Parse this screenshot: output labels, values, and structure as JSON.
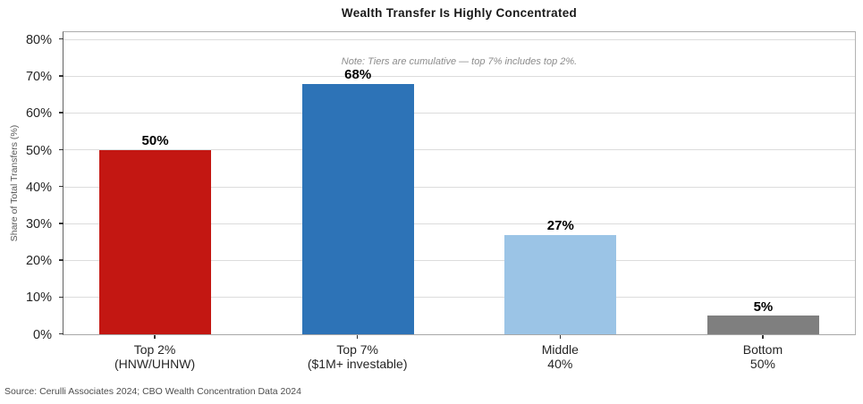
{
  "chart_data": {
    "type": "bar",
    "title": "Wealth Transfer Is Highly Concentrated",
    "ylabel": "Share of Total Transfers (%)",
    "xlabel": "",
    "note": "Note: Tiers are cumulative — top 7% includes top 2%.",
    "source": "Source: Cerulli Associates 2024; CBO Wealth Concentration Data 2024",
    "categories": [
      [
        "Top 2%",
        "(HNW/UHNW)"
      ],
      [
        "Top 7%",
        "($1M+ investable)"
      ],
      [
        "Middle",
        "40%"
      ],
      [
        "Bottom",
        "50%"
      ]
    ],
    "values": [
      50,
      68,
      27,
      5
    ],
    "bar_labels": [
      "50%",
      "68%",
      "27%",
      "5%"
    ],
    "bar_colors": [
      "#c31712",
      "#2d73b7",
      "#9bc4e6",
      "#7f7f7f"
    ],
    "yticks": [
      0,
      10,
      20,
      30,
      40,
      50,
      60,
      70,
      80
    ],
    "ytick_labels": [
      "0%",
      "10%",
      "20%",
      "30%",
      "40%",
      "50%",
      "60%",
      "70%",
      "80%"
    ],
    "ylim": [
      0,
      82
    ],
    "grid": "horizontal",
    "legend_position": "none",
    "colors": {
      "grid": "#dcdcdc",
      "title_text": "#1a1a1a",
      "tick_text": "#262626",
      "note_text": "#8c8c8c",
      "source_text": "#4d4d4d",
      "axis_label_text": "#595959"
    }
  }
}
